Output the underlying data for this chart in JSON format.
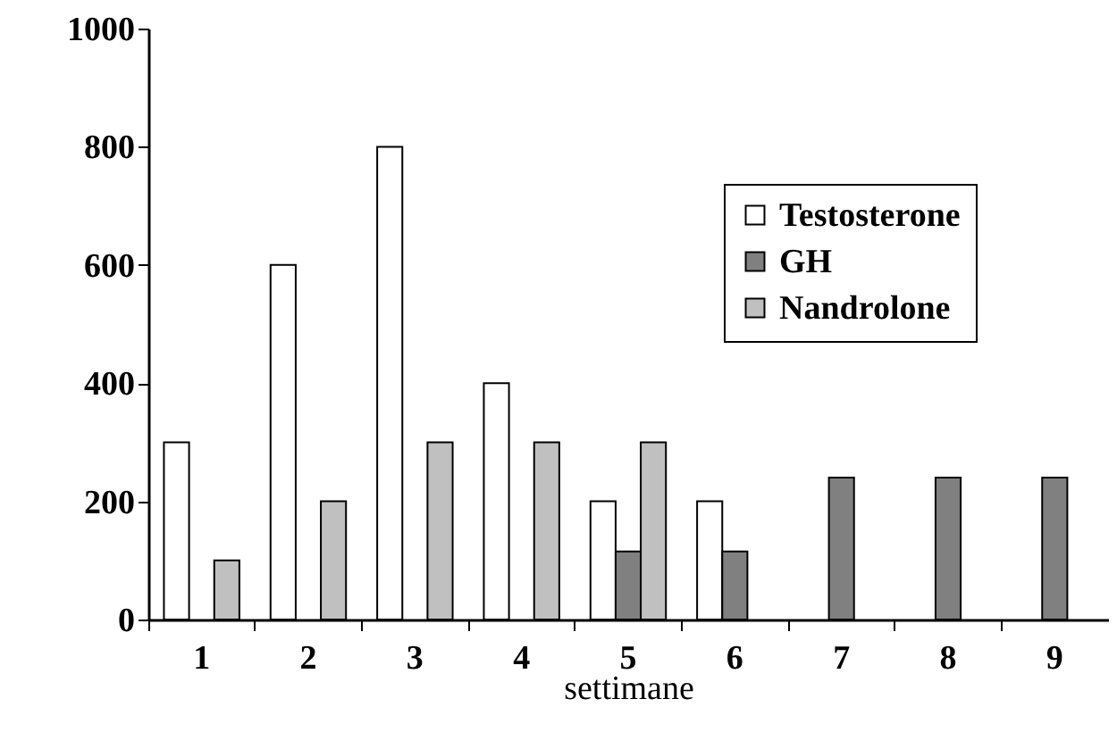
{
  "chart_data": {
    "type": "bar",
    "xlabel": "settimane",
    "categories": [
      "1",
      "2",
      "3",
      "4",
      "5",
      "6",
      "7",
      "8",
      "9"
    ],
    "series": [
      {
        "name": "Testosterone",
        "color": "#ffffff",
        "values": [
          300,
          600,
          800,
          400,
          200,
          200,
          null,
          null,
          null
        ]
      },
      {
        "name": "GH",
        "color": "#808080",
        "values": [
          null,
          null,
          null,
          null,
          115,
          115,
          240,
          240,
          240
        ]
      },
      {
        "name": "Nandrolone",
        "color": "#c0c0c0",
        "values": [
          100,
          200,
          300,
          300,
          300,
          null,
          null,
          null,
          null
        ]
      }
    ],
    "ylim": [
      0,
      1000
    ],
    "yticks": [
      0,
      200,
      400,
      600,
      800,
      1000
    ],
    "grid": false,
    "legend": "top right"
  }
}
